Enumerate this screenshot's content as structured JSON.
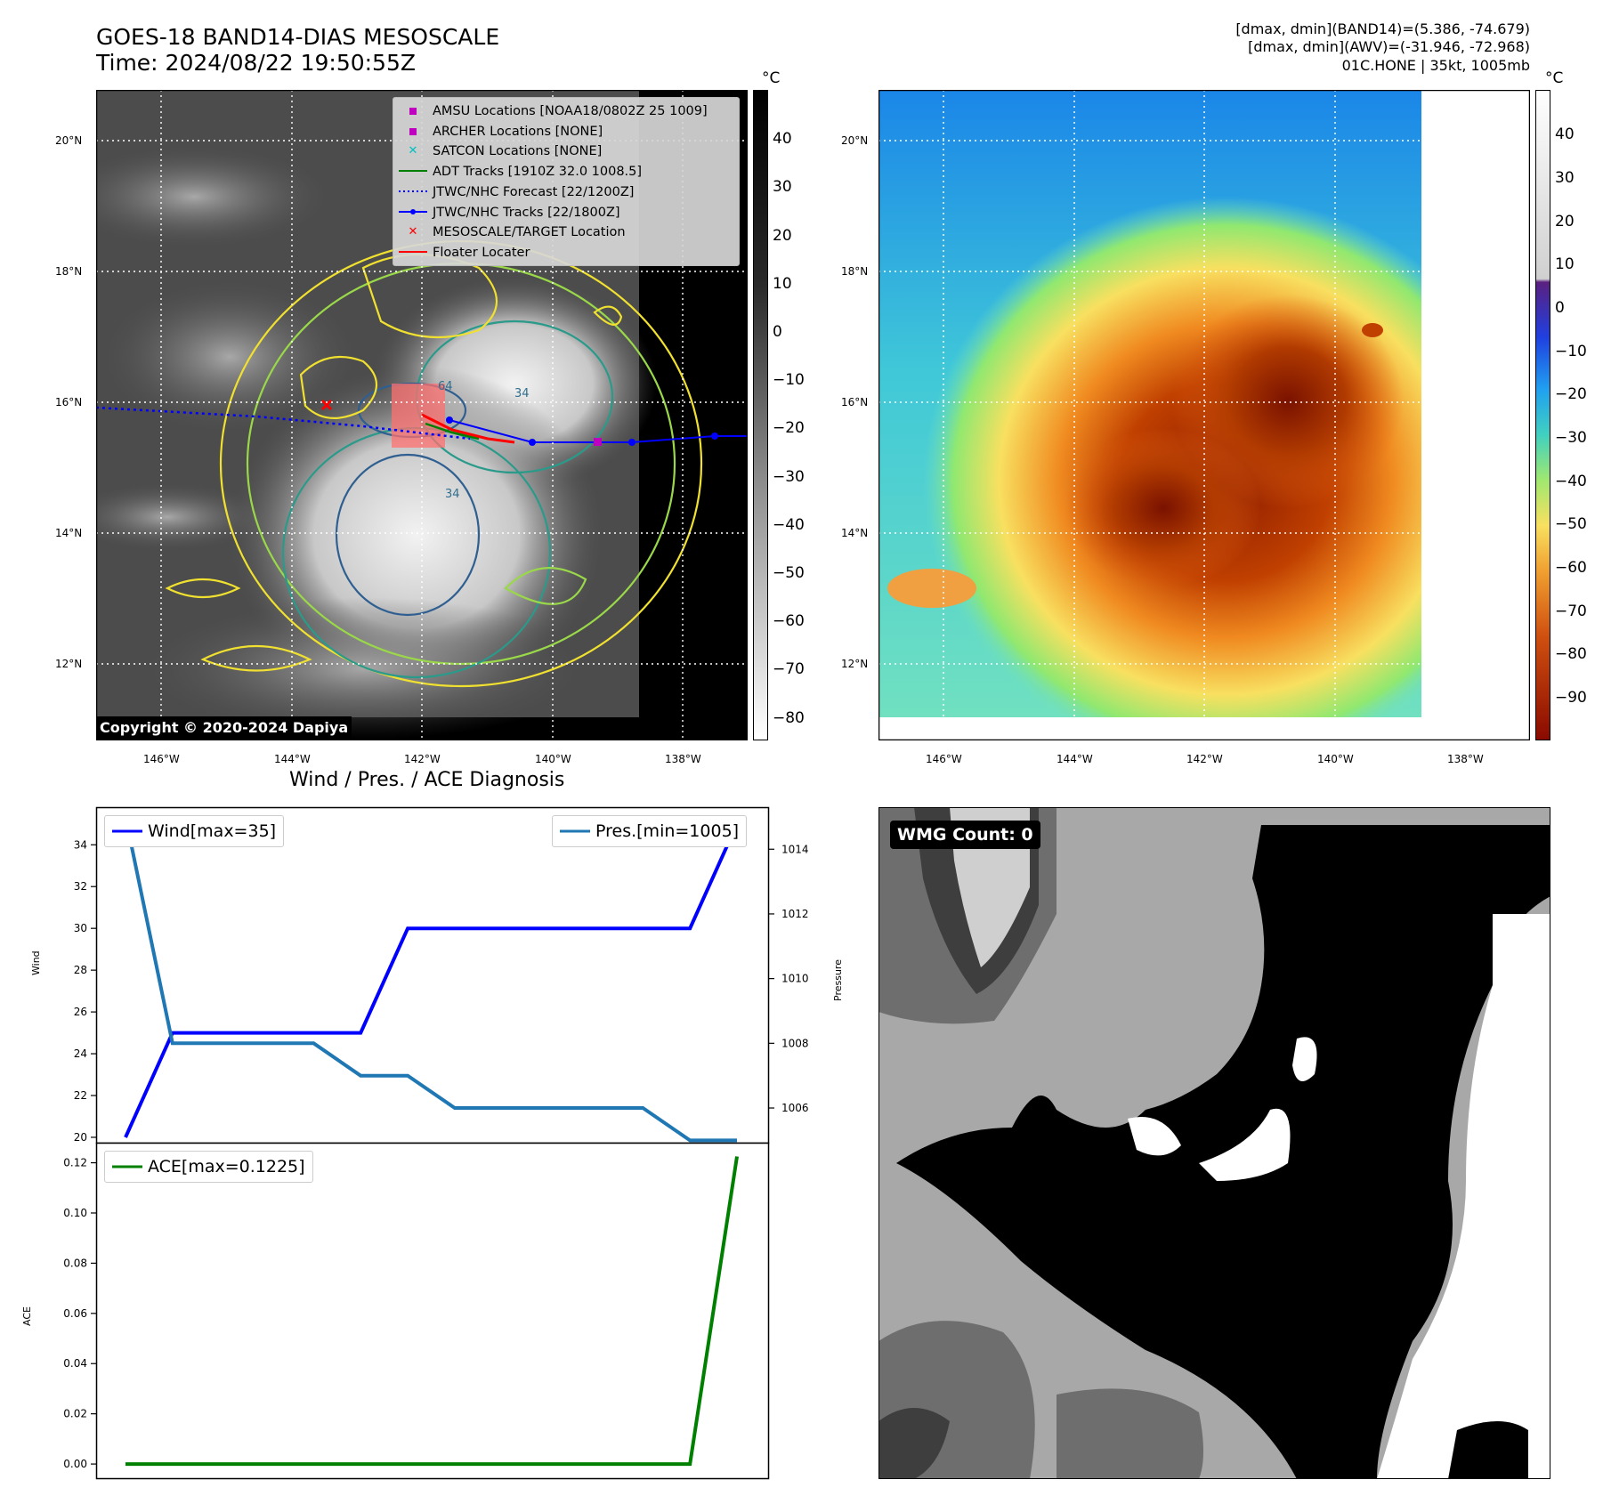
{
  "header": {
    "title_line1": "GOES-18 BAND14-DIAS MESOSCALE",
    "title_line2": "Time: 2024/08/22 19:50:55Z",
    "info_line1": "[dmax, dmin](BAND14)=(5.386, -74.679)",
    "info_line2": "[dmax, dmin](AWV)=(-31.946, -72.968)",
    "info_line3": "01C.HONE | 35kt, 1005mb"
  },
  "maps": {
    "unit": "°C",
    "lat_labels": [
      "20°N",
      "18°N",
      "16°N",
      "14°N",
      "12°N"
    ],
    "lon_labels": [
      "146°W",
      "144°W",
      "142°W",
      "140°W",
      "138°W"
    ],
    "copyright": "Copyright © 2020-2024 Dapiya",
    "left_colorbar_ticks": [
      "40",
      "30",
      "20",
      "10",
      "0",
      "−10",
      "−20",
      "−30",
      "−40",
      "−50",
      "−60",
      "−70",
      "−80"
    ],
    "right_colorbar_ticks": [
      "40",
      "30",
      "20",
      "10",
      "0",
      "−10",
      "−20",
      "−30",
      "−40",
      "−50",
      "−60",
      "−70",
      "−80",
      "−90"
    ],
    "contour_labels": [
      "64",
      "34",
      "34"
    ],
    "legend": [
      {
        "label": "AMSU Locations [NOAA18/0802Z 25 1009]",
        "marker": "square",
        "color": "#bf00bf"
      },
      {
        "label": "ARCHER Locations [NONE]",
        "marker": "square",
        "color": "#bf00bf"
      },
      {
        "label": "SATCON Locations [NONE]",
        "marker": "x",
        "color": "#00bfbf"
      },
      {
        "label": "ADT Tracks [1910Z 32.0 1008.5]",
        "marker": "line",
        "color": "#008000"
      },
      {
        "label": "JTWC/NHC Forecast [22/1200Z]",
        "marker": "dotted",
        "color": "#0000ff"
      },
      {
        "label": "JTWC/NHC Tracks [22/1800Z]",
        "marker": "line-dot",
        "color": "#0000ff"
      },
      {
        "label": "MESOSCALE/TARGET Location",
        "marker": "x",
        "color": "#ff0000"
      },
      {
        "label": "Floater Locater",
        "marker": "line",
        "color": "#ff0000"
      }
    ]
  },
  "diagnosis": {
    "title": "Wind / Pres. / ACE Diagnosis",
    "wind_ylabel": "Wind",
    "pres_ylabel": "Pressure",
    "ace_ylabel": "ACE",
    "wind_legend": "Wind[max=35]",
    "pres_legend": "Pres.[min=1005]",
    "ace_legend": "ACE[max=0.1225]",
    "wind_ticks": [
      "34",
      "32",
      "30",
      "28",
      "26",
      "24",
      "22",
      "20"
    ],
    "pres_ticks": [
      "1014",
      "1012",
      "1010",
      "1008",
      "1006"
    ],
    "ace_ticks": [
      "0.12",
      "0.10",
      "0.08",
      "0.06",
      "0.04",
      "0.02",
      "0.00"
    ]
  },
  "wmg": {
    "label": "WMG Count: 0"
  },
  "chart_data": [
    {
      "type": "line",
      "title": "Wind / Pres. / ACE Diagnosis",
      "ylabel": "Wind",
      "x": [
        0,
        1,
        2,
        3,
        4,
        5,
        6,
        7,
        8,
        9,
        10,
        11,
        12,
        13
      ],
      "ylim": [
        19.7,
        35.8
      ],
      "series": [
        {
          "name": "Wind[max=35]",
          "color": "#0000ff",
          "values": [
            20,
            25,
            25,
            25,
            25,
            25,
            30,
            30,
            30,
            30,
            30,
            30,
            30,
            35
          ]
        }
      ]
    },
    {
      "type": "line",
      "ylabel": "Pressure",
      "x": [
        0,
        1,
        2,
        3,
        4,
        5,
        6,
        7,
        8,
        9,
        10,
        11,
        12,
        13
      ],
      "ylim": [
        1004.9,
        1015.3
      ],
      "series": [
        {
          "name": "Pres.[min=1005]",
          "color": "#1f77b4",
          "values": [
            1015,
            1008,
            1008,
            1008,
            1008,
            1007,
            1007,
            1006,
            1006,
            1006,
            1006,
            1006,
            1005,
            1005
          ]
        }
      ]
    },
    {
      "type": "line",
      "ylabel": "ACE",
      "x": [
        0,
        1,
        2,
        3,
        4,
        5,
        6,
        7,
        8,
        9,
        10,
        11,
        12,
        13
      ],
      "ylim": [
        -0.006,
        0.128
      ],
      "series": [
        {
          "name": "ACE[max=0.1225]",
          "color": "#008000",
          "values": [
            0,
            0,
            0,
            0,
            0,
            0,
            0,
            0,
            0,
            0,
            0,
            0,
            0,
            0.1225
          ]
        }
      ]
    }
  ]
}
